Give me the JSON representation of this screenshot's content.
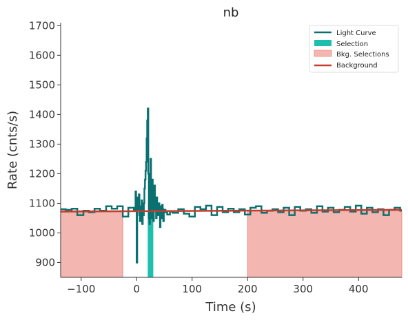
{
  "chart_data": {
    "type": "line",
    "title": "nb",
    "xlabel": "Time (s)",
    "ylabel": "Rate (cnts/s)",
    "xlim": [
      -137,
      478
    ],
    "ylim": [
      850,
      1710
    ],
    "x_ticks": [
      -100,
      0,
      100,
      200,
      300,
      400
    ],
    "x_tick_labels": [
      "−100",
      "0",
      "100",
      "200",
      "300",
      "400"
    ],
    "y_ticks": [
      900,
      1000,
      1100,
      1200,
      1300,
      1400,
      1500,
      1600,
      1700
    ],
    "y_tick_labels": [
      "900",
      "1000",
      "1100",
      "1200",
      "1300",
      "1400",
      "1500",
      "1600",
      "1700"
    ],
    "grid": false,
    "legend_position": "top-right",
    "legend": [
      {
        "label": "Light Curve",
        "kind": "line",
        "color": "#0b7070"
      },
      {
        "label": "Selection",
        "kind": "patch",
        "color": "#1fbfb0"
      },
      {
        "label": "Bkg. Selections",
        "kind": "patch",
        "color": "#f4b6b0"
      },
      {
        "label": "Background",
        "kind": "line",
        "color": "#c43c2c"
      }
    ],
    "series": [
      {
        "name": "Light Curve",
        "step": "post",
        "x": [
          -137,
          -128,
          -117,
          -107,
          -96,
          -86,
          -76,
          -66,
          -55,
          -45,
          -35,
          -25,
          -15,
          -5,
          -2,
          -1,
          0,
          1,
          2,
          3,
          4,
          5,
          6,
          7,
          8,
          9,
          10,
          11,
          12,
          13,
          14,
          15,
          16,
          17,
          18,
          19,
          20,
          21,
          22,
          23,
          24,
          25,
          26,
          27,
          28,
          29,
          30,
          31,
          32,
          33,
          34,
          35,
          36,
          37,
          38,
          39,
          40,
          41,
          42,
          43,
          44,
          45,
          46,
          47,
          48,
          49,
          50,
          52,
          55,
          60,
          65,
          75,
          85,
          95,
          105,
          115,
          125,
          135,
          145,
          155,
          165,
          175,
          185,
          195,
          205,
          215,
          225,
          235,
          245,
          255,
          265,
          275,
          285,
          295,
          305,
          315,
          325,
          335,
          345,
          355,
          365,
          375,
          385,
          395,
          405,
          415,
          425,
          435,
          445,
          455,
          465,
          475
        ],
        "y": [
          1080,
          1078,
          1082,
          1060,
          1075,
          1070,
          1082,
          1075,
          1090,
          1082,
          1090,
          1055,
          1085,
          1075,
          1140,
          1100,
          900,
          1120,
          1080,
          1100,
          1130,
          1060,
          1040,
          1090,
          1060,
          1110,
          1030,
          1095,
          1060,
          1100,
          1150,
          1180,
          1210,
          1240,
          1320,
          1380,
          1420,
          1200,
          1050,
          1030,
          1180,
          1250,
          1100,
          1050,
          1180,
          1130,
          1040,
          1120,
          1160,
          1080,
          1100,
          1050,
          1120,
          1070,
          1090,
          1060,
          1100,
          1080,
          1020,
          1090,
          1075,
          1050,
          1095,
          1080,
          1040,
          1070,
          1078,
          1070,
          1062,
          1072,
          1068,
          1080,
          1065,
          1055,
          1088,
          1080,
          1092,
          1060,
          1088,
          1070,
          1082,
          1070,
          1080,
          1062,
          1085,
          1090,
          1068,
          1075,
          1080,
          1070,
          1085,
          1060,
          1088,
          1075,
          1080,
          1068,
          1090,
          1072,
          1085,
          1070,
          1078,
          1088,
          1072,
          1092,
          1065,
          1085,
          1070,
          1080,
          1060,
          1078,
          1085,
          1075
        ]
      },
      {
        "name": "Background",
        "x": [
          -137,
          478
        ],
        "y": [
          1072,
          1078
        ]
      }
    ],
    "selection": {
      "name": "Selection",
      "x_range": [
        20,
        30
      ]
    },
    "bkg_selections": [
      {
        "name": "Bkg. Selections",
        "x_range": [
          -137,
          -25
        ]
      },
      {
        "name": "Bkg. Selections",
        "x_range": [
          200,
          478
        ]
      }
    ]
  }
}
